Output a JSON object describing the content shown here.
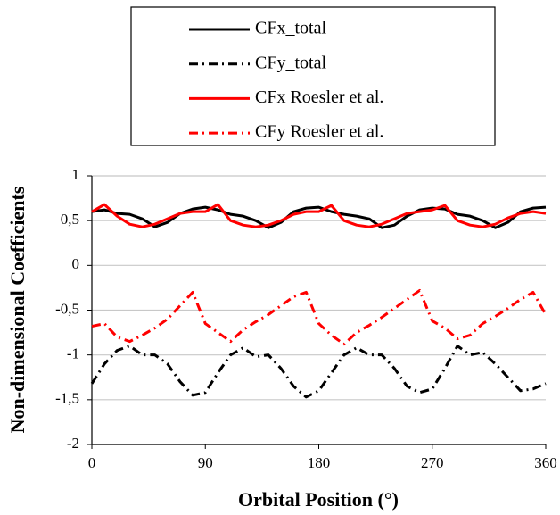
{
  "chart_data": {
    "type": "line",
    "xlabel": "Orbital Position (°)",
    "ylabel": "Non-dimensional Coefficients",
    "x": [
      0,
      10,
      20,
      30,
      40,
      50,
      60,
      70,
      80,
      90,
      100,
      110,
      120,
      130,
      140,
      150,
      160,
      170,
      180,
      190,
      200,
      210,
      220,
      230,
      240,
      250,
      260,
      270,
      280,
      290,
      300,
      310,
      320,
      330,
      340,
      350,
      360
    ],
    "series": [
      {
        "name": "CFx_total",
        "color": "#000000",
        "dash": "solid",
        "values": [
          0.6,
          0.62,
          0.58,
          0.57,
          0.52,
          0.43,
          0.48,
          0.58,
          0.63,
          0.65,
          0.62,
          0.57,
          0.55,
          0.5,
          0.42,
          0.48,
          0.6,
          0.64,
          0.65,
          0.6,
          0.57,
          0.55,
          0.52,
          0.42,
          0.45,
          0.55,
          0.62,
          0.64,
          0.63,
          0.57,
          0.55,
          0.5,
          0.42,
          0.48,
          0.6,
          0.64,
          0.65
        ]
      },
      {
        "name": "CFy_total",
        "color": "#000000",
        "dash": "dashdot",
        "values": [
          -1.32,
          -1.1,
          -0.95,
          -0.9,
          -1.0,
          -1.0,
          -1.1,
          -1.3,
          -1.45,
          -1.42,
          -1.2,
          -1.0,
          -0.92,
          -1.02,
          -1.0,
          -1.15,
          -1.35,
          -1.47,
          -1.4,
          -1.2,
          -1.0,
          -0.92,
          -1.0,
          -1.0,
          -1.15,
          -1.35,
          -1.42,
          -1.38,
          -1.15,
          -0.9,
          -1.0,
          -0.97,
          -1.1,
          -1.25,
          -1.4,
          -1.38,
          -1.32
        ]
      },
      {
        "name": "CFx Roesler et al.",
        "color": "#ff0000",
        "dash": "solid",
        "values": [
          0.6,
          0.68,
          0.55,
          0.46,
          0.43,
          0.46,
          0.52,
          0.58,
          0.6,
          0.6,
          0.68,
          0.5,
          0.45,
          0.43,
          0.45,
          0.5,
          0.57,
          0.6,
          0.6,
          0.67,
          0.5,
          0.45,
          0.43,
          0.46,
          0.52,
          0.58,
          0.6,
          0.62,
          0.67,
          0.5,
          0.45,
          0.43,
          0.46,
          0.53,
          0.58,
          0.6,
          0.58
        ]
      },
      {
        "name": "CFy Roesler et al.",
        "color": "#ff0000",
        "dash": "dashdot",
        "values": [
          -0.68,
          -0.65,
          -0.8,
          -0.85,
          -0.78,
          -0.7,
          -0.6,
          -0.45,
          -0.3,
          -0.65,
          -0.75,
          -0.85,
          -0.72,
          -0.63,
          -0.55,
          -0.45,
          -0.35,
          -0.3,
          -0.65,
          -0.78,
          -0.88,
          -0.75,
          -0.67,
          -0.58,
          -0.48,
          -0.38,
          -0.28,
          -0.62,
          -0.7,
          -0.82,
          -0.78,
          -0.65,
          -0.57,
          -0.48,
          -0.38,
          -0.3,
          -0.55
        ]
      }
    ],
    "xlim": [
      0,
      360
    ],
    "xticks": [
      0,
      90,
      180,
      270,
      360
    ],
    "ylim": [
      -2,
      1
    ],
    "yticks": [
      -2,
      {
        "value": -1.5,
        "label": "-1,5"
      },
      -1,
      {
        "value": -0.5,
        "label": "-0,5"
      },
      0,
      {
        "value": 0.5,
        "label": "0,5"
      },
      1
    ],
    "grid": true,
    "legend": "top"
  }
}
